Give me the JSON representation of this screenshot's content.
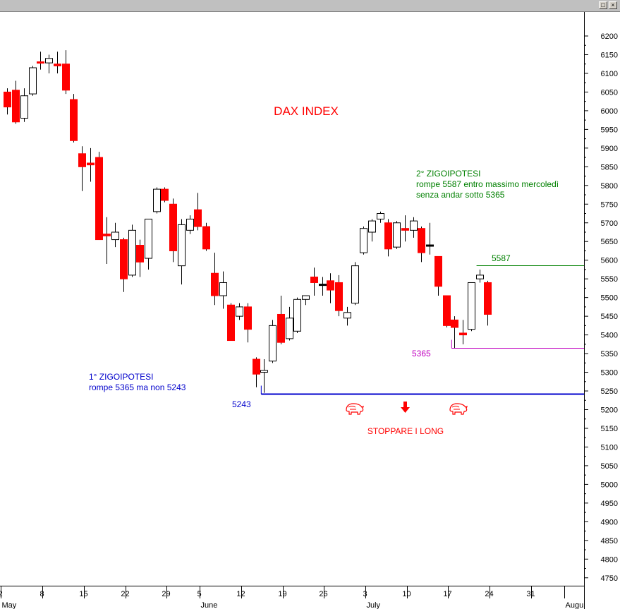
{
  "chart_data": {
    "type": "candlestick",
    "title": "DAX INDEX",
    "ylim": [
      4730,
      6235
    ],
    "y_ticks": [
      6200,
      6150,
      6100,
      6050,
      6000,
      5950,
      5900,
      5850,
      5800,
      5750,
      5700,
      5650,
      5600,
      5550,
      5500,
      5450,
      5400,
      5350,
      5300,
      5250,
      5200,
      5150,
      5100,
      5050,
      5000,
      4950,
      4900,
      4850,
      4800,
      4750
    ],
    "x_ticks": [
      {
        "slot": 0,
        "day": "2",
        "month": "May"
      },
      {
        "slot": 5,
        "day": "8",
        "month": ""
      },
      {
        "slot": 10,
        "day": "15",
        "month": ""
      },
      {
        "slot": 15,
        "day": "22",
        "month": ""
      },
      {
        "slot": 20,
        "day": "29",
        "month": ""
      },
      {
        "slot": 24,
        "day": "5",
        "month": "June"
      },
      {
        "slot": 29,
        "day": "12",
        "month": ""
      },
      {
        "slot": 34,
        "day": "19",
        "month": ""
      },
      {
        "slot": 39,
        "day": "26",
        "month": ""
      },
      {
        "slot": 44,
        "day": "3",
        "month": "July"
      },
      {
        "slot": 49,
        "day": "10",
        "month": ""
      },
      {
        "slot": 54,
        "day": "17",
        "month": ""
      },
      {
        "slot": 59,
        "day": "24",
        "month": ""
      },
      {
        "slot": 64,
        "day": "31",
        "month": ""
      },
      {
        "slot": 68,
        "day": "",
        "month": "Augu"
      }
    ],
    "candles": [
      {
        "o": 6050,
        "h": 6060,
        "l": 5990,
        "c": 6010
      },
      {
        "o": 6055,
        "h": 6080,
        "l": 5965,
        "c": 5970
      },
      {
        "o": 5980,
        "h": 6060,
        "l": 5970,
        "c": 6040
      },
      {
        "o": 6045,
        "h": 6120,
        "l": 6040,
        "c": 6115
      },
      {
        "o": 6130,
        "h": 6158,
        "l": 6110,
        "c": 6128
      },
      {
        "o": 6128,
        "h": 6150,
        "l": 6100,
        "c": 6140
      },
      {
        "o": 6125,
        "h": 6158,
        "l": 6100,
        "c": 6120
      },
      {
        "o": 6125,
        "h": 6162,
        "l": 6045,
        "c": 6055
      },
      {
        "o": 6030,
        "h": 6045,
        "l": 5915,
        "c": 5920
      },
      {
        "o": 5885,
        "h": 5905,
        "l": 5785,
        "c": 5850
      },
      {
        "o": 5860,
        "h": 5900,
        "l": 5810,
        "c": 5855
      },
      {
        "o": 5875,
        "h": 5890,
        "l": 5655,
        "c": 5655
      },
      {
        "o": 5670,
        "h": 5715,
        "l": 5590,
        "c": 5665
      },
      {
        "o": 5655,
        "h": 5700,
        "l": 5635,
        "c": 5675
      },
      {
        "o": 5655,
        "h": 5660,
        "l": 5515,
        "c": 5550
      },
      {
        "o": 5560,
        "h": 5695,
        "l": 5555,
        "c": 5680
      },
      {
        "o": 5640,
        "h": 5655,
        "l": 5555,
        "c": 5595
      },
      {
        "o": 5605,
        "h": 5710,
        "l": 5575,
        "c": 5710
      },
      {
        "o": 5730,
        "h": 5795,
        "l": 5725,
        "c": 5790
      },
      {
        "o": 5790,
        "h": 5795,
        "l": 5755,
        "c": 5760
      },
      {
        "o": 5750,
        "h": 5765,
        "l": 5595,
        "c": 5625
      },
      {
        "o": 5585,
        "h": 5710,
        "l": 5535,
        "c": 5695
      },
      {
        "o": 5680,
        "h": 5720,
        "l": 5670,
        "c": 5710
      },
      {
        "o": 5735,
        "h": 5780,
        "l": 5680,
        "c": 5690
      },
      {
        "o": 5690,
        "h": 5700,
        "l": 5625,
        "c": 5630
      },
      {
        "o": 5565,
        "h": 5620,
        "l": 5480,
        "c": 5505
      },
      {
        "o": 5505,
        "h": 5570,
        "l": 5470,
        "c": 5540
      },
      {
        "o": 5480,
        "h": 5485,
        "l": 5385,
        "c": 5385
      },
      {
        "o": 5450,
        "h": 5485,
        "l": 5440,
        "c": 5475
      },
      {
        "o": 5475,
        "h": 5485,
        "l": 5380,
        "c": 5415
      },
      {
        "o": 5335,
        "h": 5340,
        "l": 5260,
        "c": 5295
      },
      {
        "o": 5300,
        "h": 5335,
        "l": 5245,
        "c": 5305
      },
      {
        "o": 5330,
        "h": 5440,
        "l": 5325,
        "c": 5425
      },
      {
        "o": 5455,
        "h": 5505,
        "l": 5375,
        "c": 5380
      },
      {
        "o": 5390,
        "h": 5475,
        "l": 5385,
        "c": 5445
      },
      {
        "o": 5410,
        "h": 5500,
        "l": 5405,
        "c": 5495
      },
      {
        "o": 5495,
        "h": 5505,
        "l": 5480,
        "c": 5505
      },
      {
        "o": 5555,
        "h": 5580,
        "l": 5505,
        "c": 5540
      },
      {
        "o": 5535,
        "h": 5555,
        "l": 5505,
        "c": 5535
      },
      {
        "o": 5545,
        "h": 5565,
        "l": 5485,
        "c": 5520
      },
      {
        "o": 5540,
        "h": 5560,
        "l": 5450,
        "c": 5465
      },
      {
        "o": 5445,
        "h": 5475,
        "l": 5425,
        "c": 5460
      },
      {
        "o": 5485,
        "h": 5595,
        "l": 5480,
        "c": 5585
      },
      {
        "o": 5620,
        "h": 5690,
        "l": 5615,
        "c": 5685
      },
      {
        "o": 5675,
        "h": 5710,
        "l": 5650,
        "c": 5705
      },
      {
        "o": 5710,
        "h": 5730,
        "l": 5700,
        "c": 5725
      },
      {
        "o": 5700,
        "h": 5710,
        "l": 5610,
        "c": 5630
      },
      {
        "o": 5635,
        "h": 5705,
        "l": 5630,
        "c": 5700
      },
      {
        "o": 5685,
        "h": 5720,
        "l": 5650,
        "c": 5680
      },
      {
        "o": 5680,
        "h": 5715,
        "l": 5660,
        "c": 5705
      },
      {
        "o": 5685,
        "h": 5690,
        "l": 5595,
        "c": 5620
      },
      {
        "o": 5640,
        "h": 5700,
        "l": 5615,
        "c": 5640
      },
      {
        "o": 5610,
        "h": 5610,
        "l": 5505,
        "c": 5530
      },
      {
        "o": 5505,
        "h": 5505,
        "l": 5420,
        "c": 5425
      },
      {
        "o": 5440,
        "h": 5450,
        "l": 5365,
        "c": 5420
      },
      {
        "o": 5405,
        "h": 5440,
        "l": 5375,
        "c": 5400
      },
      {
        "o": 5415,
        "h": 5540,
        "l": 5410,
        "c": 5540
      },
      {
        "o": 5550,
        "h": 5575,
        "l": 5540,
        "c": 5560
      },
      {
        "o": 5540,
        "h": 5545,
        "l": 5425,
        "c": 5455
      }
    ]
  },
  "annotations": {
    "title": "DAX INDEX",
    "hyp2_line1": "2° ZIGOIPOTESI",
    "hyp2_line2": "rompe 5587 entro massimo mercoledì",
    "hyp2_line3": "senza andar sotto 5365",
    "hyp1_line1": "1° ZIGOIPOTESI",
    "hyp1_line2": "rompe 5365 ma non 5243",
    "level_5587": "5587",
    "level_5365": "5365",
    "level_5243": "5243",
    "stop_text": "STOPPARE I LONG",
    "bear_icon_name": "bear-icon",
    "down_arrow_icon_name": "down-arrow-icon"
  },
  "levels": [
    {
      "value": 5587,
      "color": "#008000",
      "from_slot": 57
    },
    {
      "value": 5365,
      "color": "#c000c0",
      "from_slot": 54
    },
    {
      "value": 5243,
      "color": "#0000cc",
      "from_slot": 31
    }
  ],
  "colors": {
    "up_body": "#ffffff",
    "down_body": "#ff0000",
    "doji": "#000000",
    "title": "#ff0000",
    "hyp2": "#008000",
    "hyp1": "#0000cc",
    "level_5365_label": "#c000c0",
    "stop": "#ff0000"
  }
}
